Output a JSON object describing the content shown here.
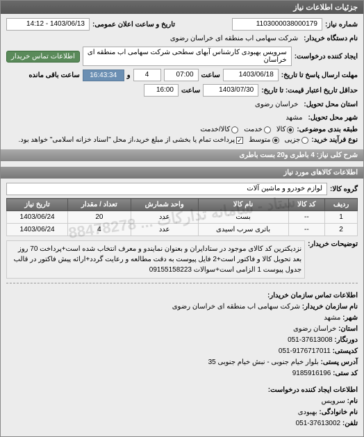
{
  "panel_title": "جزئیات اطلاعات نیاز",
  "fields": {
    "need_no_lbl": "شماره نیاز:",
    "need_no": "1103000038000179",
    "pub_time_lbl": "تاریخ و ساعت اعلان عمومی:",
    "pub_time": "1403/06/13 - 14:12",
    "buyer_org_lbl": "نام دستگاه خریدار:",
    "buyer_org": "شرکت سهامی اب منطقه ای خراسان رضوی",
    "creator_lbl": "ایجاد کننده درخواست:",
    "service_lbl": "سرویس بهبودی کارشناس آبهای سطحی شرکت سهامی اب منطقه ای خراسان",
    "contact_btn": "اطلاعات تماس خریدار",
    "resp_deadline_lbl": "مهلت ارسال پاسخ تا تاریخ:",
    "resp_date": "1403/06/18",
    "saat_lbl": "ساعت",
    "resp_time": "07:00",
    "va": "و",
    "days": "4",
    "remain": "16:43:34",
    "remain_lbl": "ساعت باقی مانده",
    "price_valid_lbl": "حداقل تاریخ اعتبار قیمت: تا تاریخ:",
    "price_date": "1403/07/30",
    "price_time": "16:00",
    "delivery_state_lbl": "استان محل تحویل:",
    "delivery_state": "خراسان رضوی",
    "delivery_city_lbl": "شهر محل تحویل:",
    "delivery_city": "مشهد",
    "subject_cat_lbl": "طبقه بندی موضوعی:",
    "cat_kala": "کالا",
    "cat_khedmat": "خدمت",
    "cat_both": "کالا/خدمت",
    "proc_type_lbl": "نوع فرآیند خرید:",
    "proc_small": "جزیی",
    "proc_mid": "متوسط",
    "proc_note": "پرداخت تمام یا بخشی از مبلغ خرید،از محل \"اسناد خزانه اسلامی\" خواهد بود.",
    "key_desc_lbl": "شرح کلی نیاز:",
    "key_desc": "4 باطری و20 بست باطری"
  },
  "section_items": "اطلاعات کالاهای مورد نیاز",
  "group_lbl": "گروه کالا:",
  "group_val": "لوازم خودرو و ماشین آلات",
  "table": {
    "headers": [
      "ردیف",
      "کد کالا",
      "نام کالا",
      "واحد شمارش",
      "تعداد / مقدار",
      "تاریخ نیاز"
    ],
    "rows": [
      [
        "1",
        "--",
        "بست",
        "عدد",
        "20",
        "1403/06/24"
      ],
      [
        "2",
        "--",
        "باتری سرب اسیدی",
        "عدد",
        "4",
        "1403/06/24"
      ]
    ]
  },
  "notes_lbl": "توضیحات خریدار:",
  "notes": "نزدیکترین کد کالای موجود در ستادایران و بعنوان نمایندو و معرف انتخاب شده است+پرداخت 70 روز بعد تحویل کالا و فاکتور است+2 فایل پیوست به دقت مطالعه و رعایت گردد+ارائه پیش فاکتور در قالب جدول پیوست 1 الزامی است+سوالات 09155158223",
  "contact_section": "اطلاعات تماس سازمان خریدار:",
  "contact": {
    "org_lbl": "نام سازمان خریدار:",
    "org": "شرکت سهامی اب منطقه ای خراسان رضوی",
    "city_lbl": "شهر:",
    "city": "مشهد",
    "province_lbl": "استان:",
    "province": "خراسان رضوی",
    "fax_lbl": "دورنگار:",
    "fax": "37613008-051",
    "post_lbl": "کدپستی:",
    "post": "9176717011-051",
    "addr_lbl": "آدرس پستی:",
    "addr": "بلوار خیام جنوبی - نبش خیام جنوبی 35",
    "seat_lbl": "کد ستی:",
    "seat": "9185916196"
  },
  "creator_section": "اطلاعات ایجاد کننده درخواست:",
  "creator": {
    "name_lbl": "نام:",
    "name": "سرویس",
    "family_lbl": "نام خانوادگی:",
    "family": "بهبودی",
    "tel_lbl": "تلفن:",
    "tel": "37613002-051"
  },
  "watermark": "ستاد - سامانه تدارکات ... 88478278"
}
